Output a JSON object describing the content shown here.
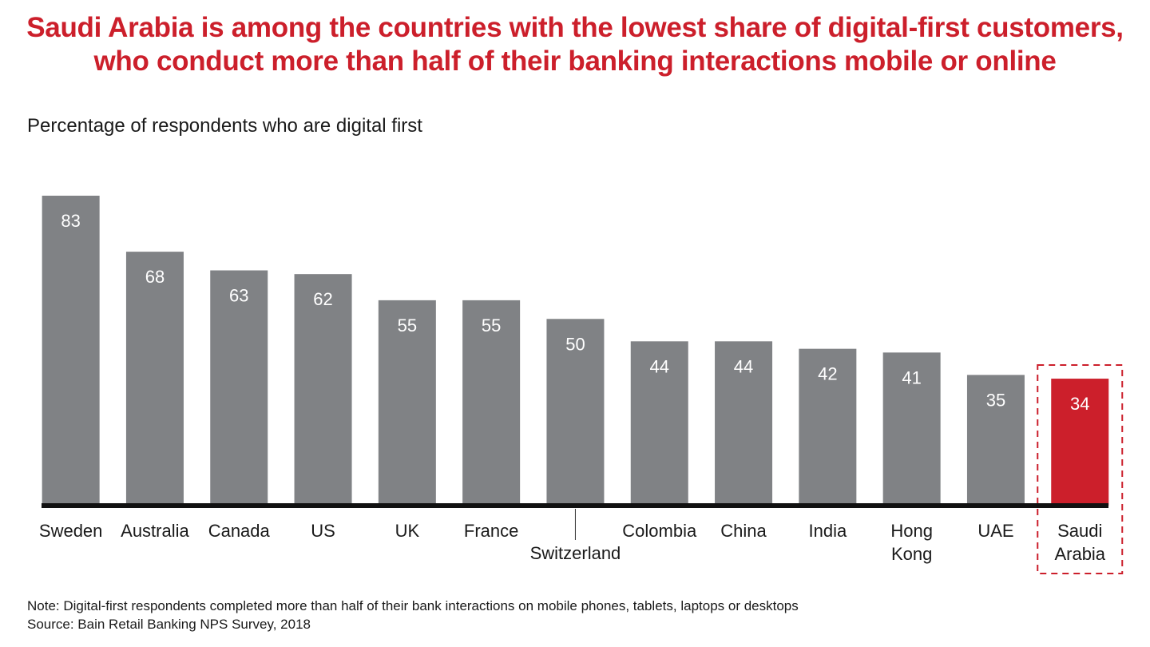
{
  "title": {
    "line1": "Saudi Arabia is among the countries with the lowest share of digital-first customers,",
    "line2": "who conduct more than half of their banking interactions mobile or online"
  },
  "subtitle": "Percentage of respondents who are digital first",
  "chart_data": {
    "type": "bar",
    "title": "Percentage of respondents who are digital first",
    "categories": [
      "Sweden",
      "Australia",
      "Canada",
      "US",
      "UK",
      "France",
      "Switzerland",
      "Colombia",
      "China",
      "India",
      "Hong Kong",
      "UAE",
      "Saudi Arabia"
    ],
    "category_lines": [
      [
        "Sweden"
      ],
      [
        "Australia"
      ],
      [
        "Canada"
      ],
      [
        "US"
      ],
      [
        "UK"
      ],
      [
        "France"
      ],
      [
        "Switzerland"
      ],
      [
        "Colombia"
      ],
      [
        "China"
      ],
      [
        "India"
      ],
      [
        "Hong",
        "Kong"
      ],
      [
        "UAE"
      ],
      [
        "Saudi",
        "Arabia"
      ]
    ],
    "values": [
      83,
      68,
      63,
      62,
      55,
      55,
      50,
      44,
      44,
      42,
      41,
      35,
      34
    ],
    "highlight": "Saudi Arabia",
    "ylim": [
      0,
      83
    ],
    "xlabel": "",
    "ylabel": "",
    "colors": {
      "bar": "#808285",
      "highlight": "#cc1f2b",
      "axis": "#111111",
      "value_text": "#ffffff",
      "callout_box": "#cc1f2b"
    }
  },
  "footer": {
    "note": "Note: Digital-first respondents completed more than half of their bank interactions on mobile phones, tablets, laptops or desktops",
    "source": "Source: Bain Retail Banking NPS Survey, 2018"
  }
}
